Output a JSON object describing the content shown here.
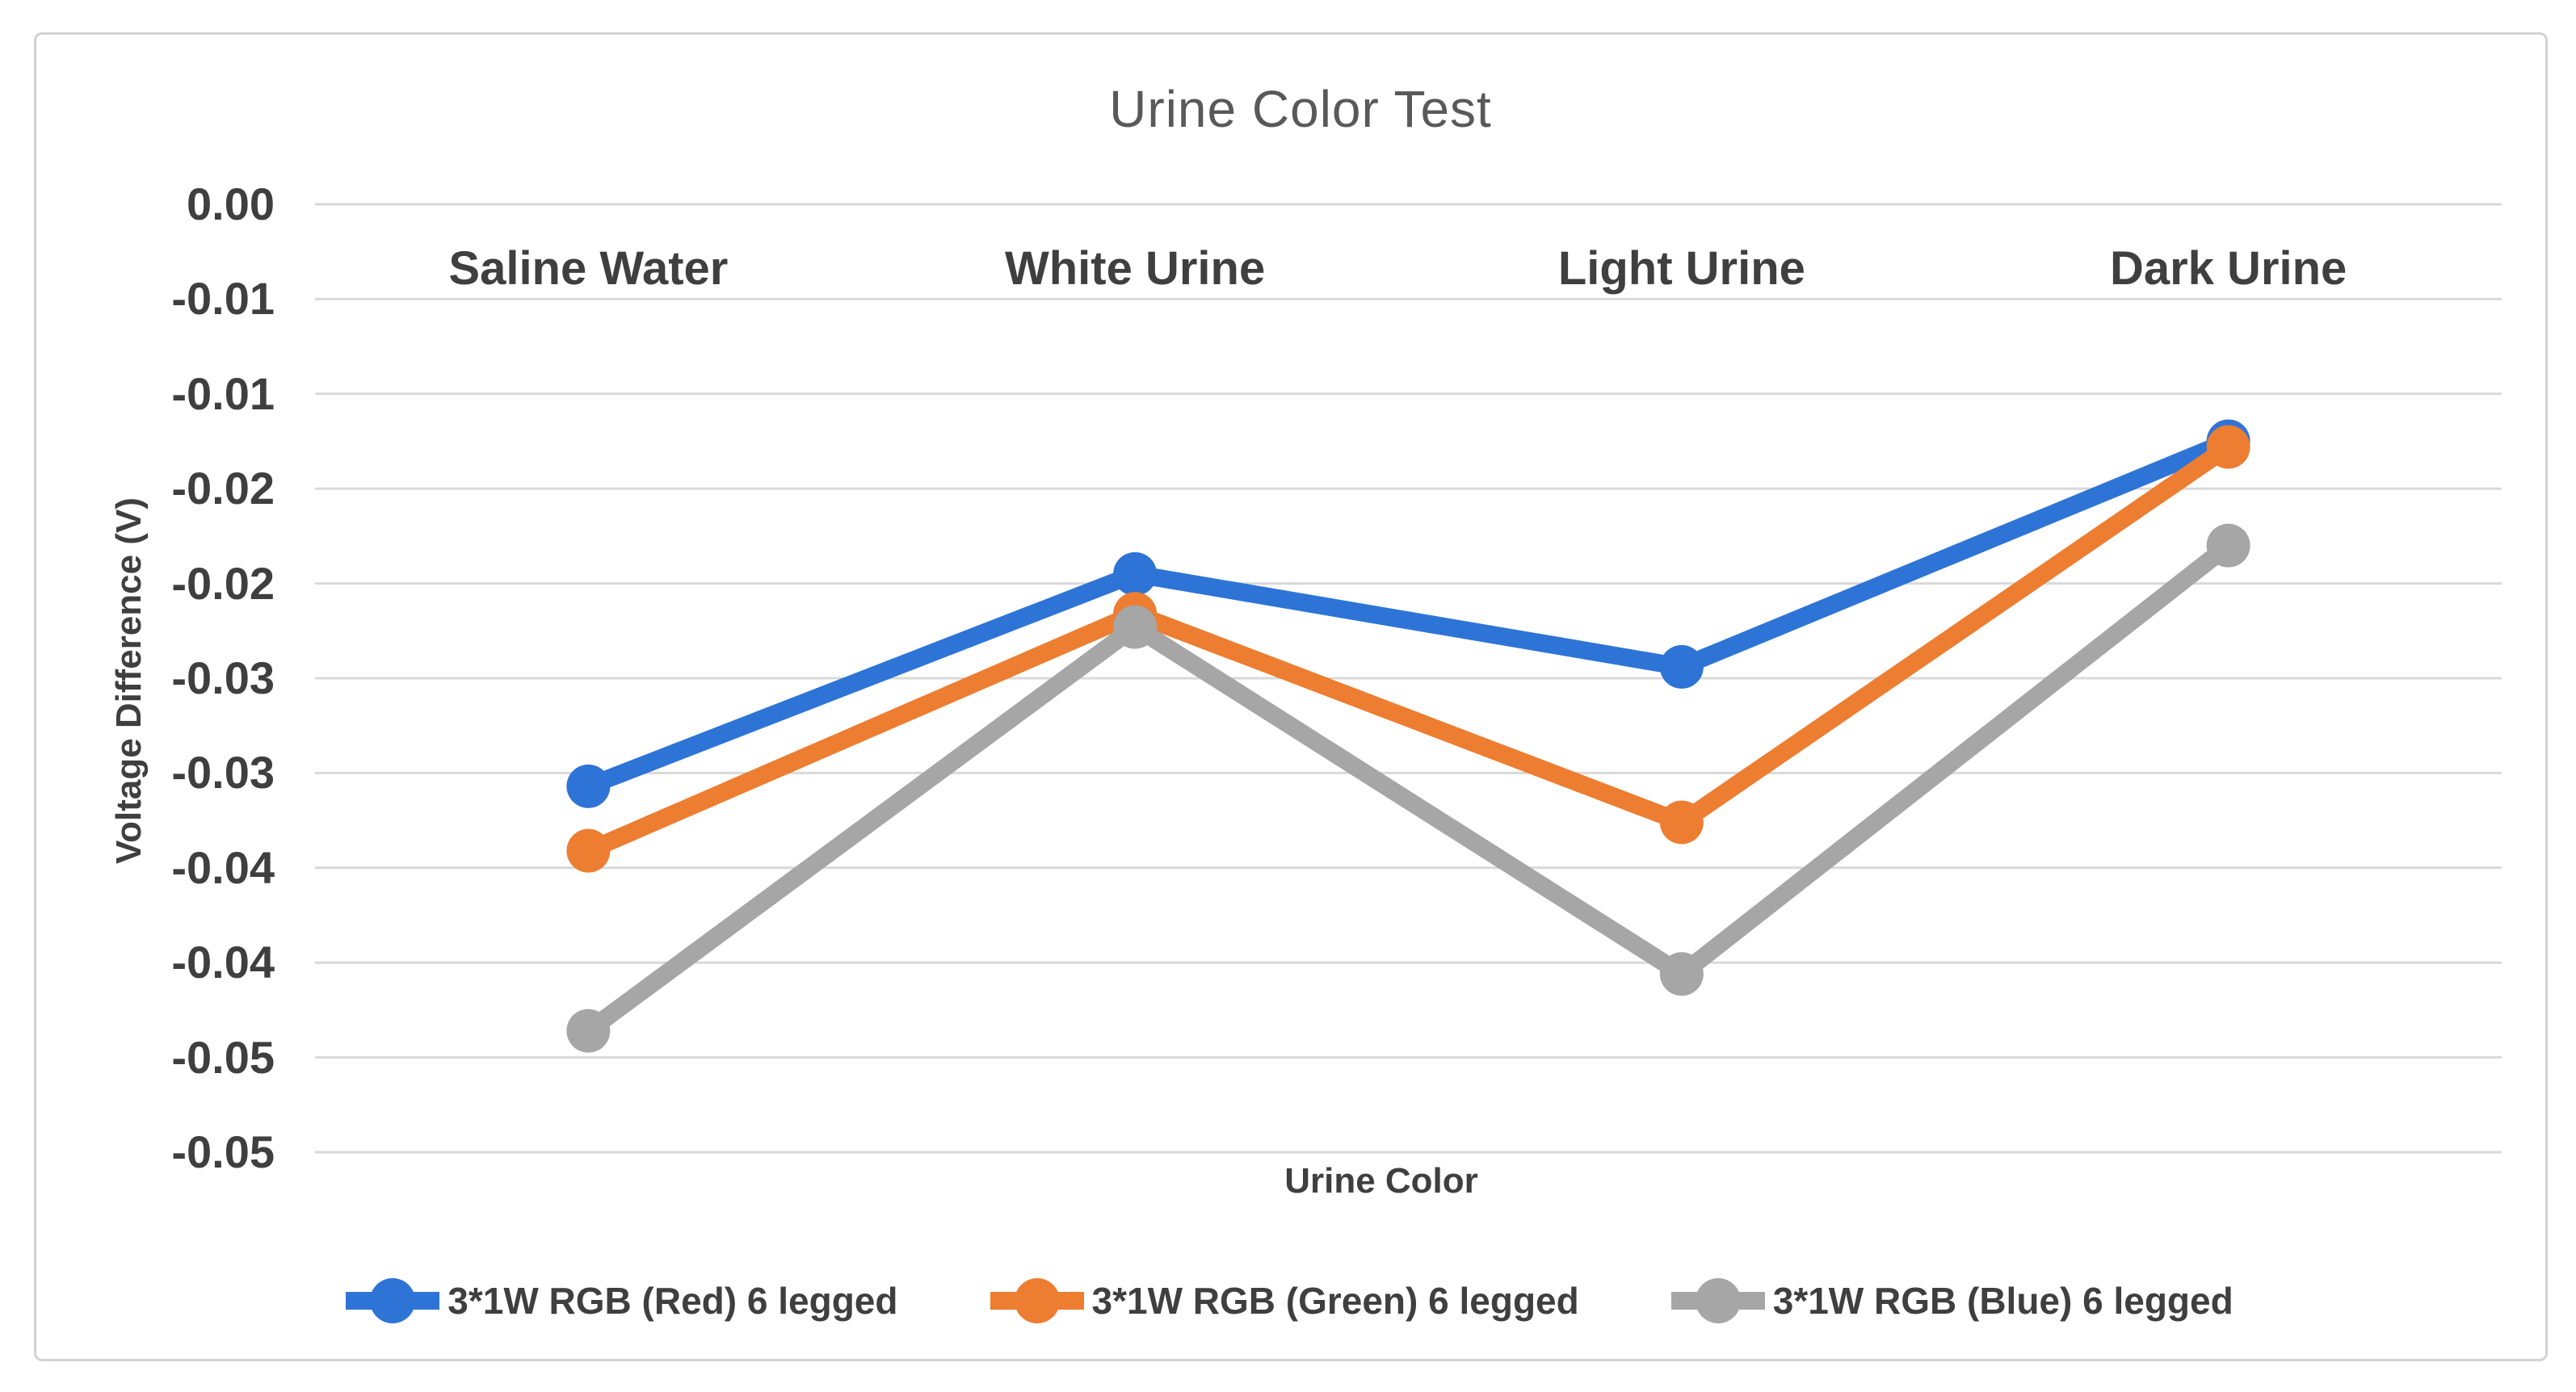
{
  "window": {
    "background_color": "#ffffff",
    "border_color": "#d2d2d2"
  },
  "chart_data": {
    "type": "line",
    "title": "Urine Color Test",
    "xlabel": "Urine Color",
    "ylabel": "Voltage Difference (V)",
    "categories": [
      "Saline Water",
      "White Urine",
      "Light Urine",
      "Dark Urine"
    ],
    "series": [
      {
        "name": "3*1W RGB (Red) 6 legged",
        "slug": "red",
        "color": "#2e74d6",
        "values": [
          -0.0307,
          -0.0195,
          -0.0244,
          -0.0125
        ]
      },
      {
        "name": "3*1W RGB (Green) 6 legged",
        "slug": "green",
        "color": "#ed7d31",
        "values": [
          -0.0341,
          -0.0216,
          -0.0326,
          -0.0128
        ]
      },
      {
        "name": "3*1W RGB (Blue) 6 legged",
        "slug": "blue",
        "color": "#a6a6a6",
        "values": [
          -0.0436,
          -0.0223,
          -0.0406,
          -0.018
        ]
      }
    ],
    "y_axis": {
      "min": -0.05,
      "max": 0,
      "tick_step": 0.005,
      "tick_labels": [
        "0.00",
        "-0.01",
        "-0.01",
        "-0.02",
        "-0.02",
        "-0.03",
        "-0.03",
        "-0.04",
        "-0.04",
        "-0.05",
        "-0.05"
      ]
    },
    "grid": true,
    "gridline_color": "#d9d9d9",
    "legend_position": "bottom",
    "marker": "circle"
  }
}
